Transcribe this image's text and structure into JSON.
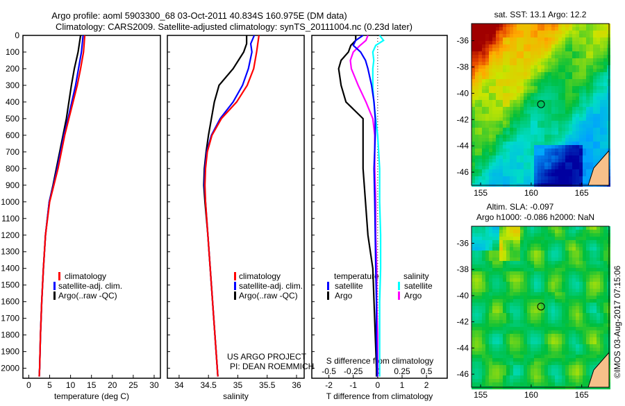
{
  "title_line1": "Argo profile: aoml 5903300_68 03-Oct-2011 40.834S 160.975E (DM data)",
  "title_line2": "Climatology: CARS2009. Satellite-adjusted climatology: synTS_20111004.nc (0.23d later)",
  "colors": {
    "climatology": "#ff0000",
    "satellite": "#0000ff",
    "argo": "#000000",
    "sal_sat": "#00ffff",
    "sal_argo": "#ff00ff"
  },
  "chart_data": [
    {
      "type": "line",
      "name": "temperature",
      "xlabel": "temperature (deg C)",
      "xlim": [
        -1.4,
        31.5
      ],
      "xticks": [
        0,
        5,
        10,
        15,
        20,
        25,
        30
      ],
      "ylim": [
        0,
        2060
      ],
      "yticks": [
        0,
        100,
        200,
        300,
        400,
        500,
        600,
        700,
        800,
        900,
        1000,
        1100,
        1200,
        1300,
        1400,
        1500,
        1600,
        1700,
        1800,
        1900,
        2000
      ],
      "depth": [
        0,
        100,
        200,
        300,
        400,
        500,
        600,
        700,
        800,
        900,
        1000,
        1200,
        1400,
        1600,
        1800,
        2000,
        2050
      ],
      "legend": [
        "climatology",
        "satellite-adj. clim.",
        "Argo(..raw -QC)"
      ],
      "series": [
        {
          "name": "climatology",
          "values": [
            13.4,
            13.1,
            12.4,
            11.6,
            10.6,
            9.6,
            8.6,
            7.8,
            7.0,
            6.0,
            5.0,
            4.0,
            3.5,
            3.1,
            2.8,
            2.6,
            2.5
          ]
        },
        {
          "name": "satellite-adj. clim.",
          "values": [
            13.0,
            12.6,
            11.9,
            11.2,
            10.3,
            9.4,
            8.4,
            7.6,
            6.8,
            5.9,
            4.9,
            4.0,
            3.5,
            3.1,
            2.8,
            2.6,
            2.5
          ]
        },
        {
          "name": "Argo(..raw -QC)",
          "values": [
            12.4,
            11.8,
            10.9,
            10.2,
            9.6,
            9.0,
            8.2,
            7.4,
            6.6,
            5.8,
            4.9,
            4.0,
            3.5,
            3.1,
            2.8,
            2.6,
            2.5
          ]
        }
      ]
    },
    {
      "type": "line",
      "name": "salinity",
      "xlabel": "salinity",
      "xlim": [
        33.8,
        36.13
      ],
      "xticks": [
        34,
        34.5,
        35,
        35.5,
        36
      ],
      "ylim": [
        0,
        2060
      ],
      "depth": [
        0,
        50,
        100,
        200,
        300,
        400,
        500,
        600,
        700,
        800,
        900,
        1000,
        1200,
        1400,
        1600,
        1800,
        2000,
        2050
      ],
      "annotation": [
        "US ARGO PROJECT",
        "PI: DEAN ROEMMICH"
      ],
      "series": [
        {
          "name": "climatology",
          "values": [
            35.36,
            35.34,
            35.32,
            35.27,
            35.16,
            34.98,
            34.72,
            34.56,
            34.48,
            34.45,
            34.44,
            34.45,
            34.49,
            34.53,
            34.57,
            34.61,
            34.65,
            34.66
          ]
        },
        {
          "name": "satellite-adj. clim.",
          "values": [
            35.28,
            35.22,
            35.24,
            35.18,
            35.08,
            34.92,
            34.7,
            34.55,
            34.47,
            34.44,
            34.43,
            34.45,
            34.49,
            34.53,
            34.57,
            34.61,
            34.65,
            34.66
          ]
        },
        {
          "name": "Argo(..raw -QC)",
          "values": [
            35.15,
            35.15,
            35.1,
            34.92,
            34.68,
            34.6,
            34.55,
            34.5,
            34.46,
            34.43,
            34.42,
            34.44,
            34.49,
            34.53,
            34.57,
            34.61,
            34.65,
            34.66
          ]
        }
      ]
    },
    {
      "type": "line",
      "name": "difference",
      "xlabel": "T difference from climatology",
      "xlim": [
        -2.7,
        2.85
      ],
      "xticks": [
        -2,
        -1,
        0,
        1,
        2
      ],
      "s_label": "S difference from climatology",
      "s_xlim": [
        -0.675,
        0.7125
      ],
      "s_xticks": [
        -0.5,
        -0.25,
        0,
        0.25,
        0.5
      ],
      "ylim": [
        0,
        2060
      ],
      "depth": [
        0,
        30,
        60,
        100,
        150,
        200,
        300,
        400,
        500,
        600,
        800,
        1000,
        1200,
        1400,
        1600,
        1800,
        2000,
        2050
      ],
      "legend_t": [
        "temperature",
        "satellite",
        "Argo"
      ],
      "legend_s": [
        "salinity",
        "satellite",
        "Argo"
      ],
      "series": [
        {
          "name": "T satellite",
          "axis": "T",
          "values": [
            -0.6,
            -0.9,
            -1.0,
            -0.7,
            -0.5,
            -0.4,
            -0.25,
            -0.15,
            -0.1,
            -0.1,
            -0.15,
            -0.12,
            -0.1,
            -0.08,
            -0.05,
            -0.05,
            -0.02,
            -0.02
          ]
        },
        {
          "name": "T Argo",
          "axis": "T",
          "values": [
            -0.9,
            -0.9,
            -1.1,
            -1.2,
            -1.5,
            -1.6,
            -1.5,
            -1.3,
            -0.6,
            -0.6,
            -0.6,
            -0.5,
            -0.4,
            -0.2,
            -0.15,
            -0.1,
            -0.05,
            -0.05
          ]
        },
        {
          "name": "S satellite",
          "axis": "S",
          "values": [
            0.02,
            0.06,
            -0.02,
            -0.05,
            -0.04,
            -0.05,
            -0.05,
            -0.04,
            -0.02,
            0.0,
            0.02,
            0.02,
            0.03,
            0.03,
            0.02,
            0.02,
            0.02,
            0.02
          ]
        },
        {
          "name": "S Argo",
          "axis": "S",
          "values": [
            -0.1,
            -0.12,
            -0.18,
            -0.25,
            -0.28,
            -0.27,
            -0.2,
            -0.12,
            -0.05,
            -0.03,
            -0.03,
            -0.02,
            -0.02,
            -0.01,
            -0.01,
            0.0,
            0.0,
            0.0
          ]
        }
      ]
    },
    {
      "type": "heatmap",
      "name": "sst-map",
      "title": "sat. SST: 13.1 Argo: 12.2",
      "xlim": [
        154.1,
        167.7
      ],
      "ylim": [
        -47.0,
        -34.7
      ],
      "xticks": [
        155,
        160,
        165
      ],
      "yticks": [
        -36,
        -38,
        -40,
        -42,
        -44,
        -46
      ],
      "marker": {
        "lon": 160.975,
        "lat": -40.834
      }
    },
    {
      "type": "heatmap",
      "name": "sla-map",
      "title_line1": "Altim. SLA: -0.097",
      "title_line2": "Argo h1000: -0.086 h2000: NaN",
      "xlim": [
        154.1,
        167.7
      ],
      "ylim": [
        -47.0,
        -34.7
      ],
      "xticks": [
        155,
        160,
        165
      ],
      "yticks": [
        -36,
        -38,
        -40,
        -42,
        -44,
        -46
      ],
      "marker": {
        "lon": 160.975,
        "lat": -40.834
      }
    }
  ],
  "footer_stamp": "©IMOS 03-Aug-2017 07:15:06"
}
